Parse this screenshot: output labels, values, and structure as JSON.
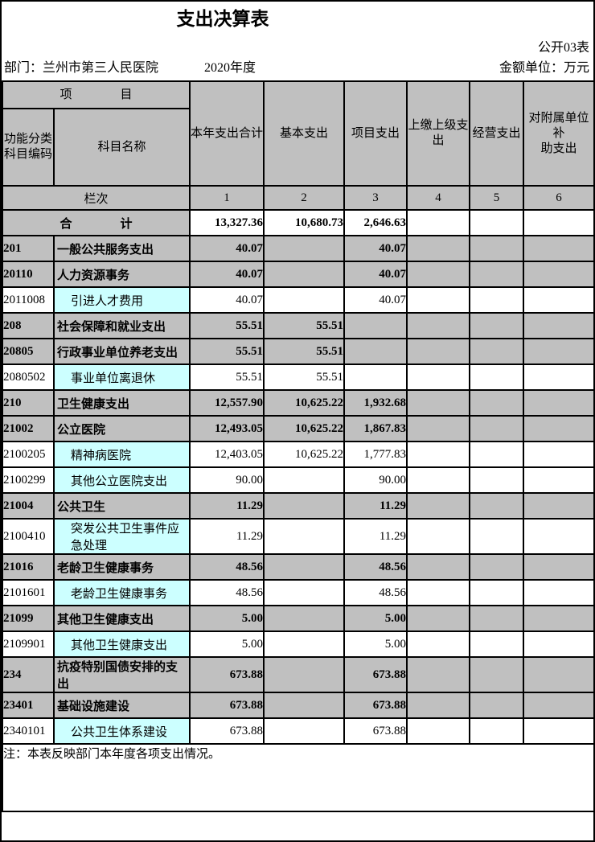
{
  "page": {
    "title": "支出决算表",
    "form_code": "公开03表",
    "department": "部门：兰州市第三人民医院",
    "year": "2020年度",
    "unit": "金额单位：万元",
    "note": "注：本表反映部门本年度各项支出情况。"
  },
  "colors": {
    "header_bg": "#c0c0c0",
    "detail_name_bg": "#ccffff",
    "border": "#000000"
  },
  "table": {
    "project_header": "项　　　　目",
    "code_header": "功能分类\n科目编码",
    "name_header": "科目名称",
    "columns": [
      "本年支出合计",
      "基本支出",
      "项目支出",
      "上缴上级支出",
      "经营支出",
      "对附属单位补\n助支出"
    ],
    "lanci_label": "栏次",
    "column_numbers": [
      "1",
      "2",
      "3",
      "4",
      "5",
      "6"
    ],
    "total": {
      "label": "合　　　　计",
      "values": [
        "13,327.36",
        "10,680.73",
        "2,646.63",
        "",
        "",
        ""
      ]
    },
    "rows": [
      {
        "code": "201",
        "name": "一般公共服务支出",
        "type": "group",
        "values": [
          "40.07",
          "",
          "40.07",
          "",
          "",
          ""
        ]
      },
      {
        "code": "20110",
        "name": "人力资源事务",
        "type": "group",
        "values": [
          "40.07",
          "",
          "40.07",
          "",
          "",
          ""
        ]
      },
      {
        "code": "2011008",
        "name": "引进人才费用",
        "type": "detail",
        "values": [
          "40.07",
          "",
          "40.07",
          "",
          "",
          ""
        ]
      },
      {
        "code": "208",
        "name": "社会保障和就业支出",
        "type": "group",
        "values": [
          "55.51",
          "55.51",
          "",
          "",
          "",
          ""
        ]
      },
      {
        "code": "20805",
        "name": "行政事业单位养老支出",
        "type": "group",
        "values": [
          "55.51",
          "55.51",
          "",
          "",
          "",
          ""
        ]
      },
      {
        "code": "2080502",
        "name": "事业单位离退休",
        "type": "detail",
        "values": [
          "55.51",
          "55.51",
          "",
          "",
          "",
          ""
        ]
      },
      {
        "code": "210",
        "name": "卫生健康支出",
        "type": "group",
        "values": [
          "12,557.90",
          "10,625.22",
          "1,932.68",
          "",
          "",
          ""
        ]
      },
      {
        "code": "21002",
        "name": "公立医院",
        "type": "group",
        "values": [
          "12,493.05",
          "10,625.22",
          "1,867.83",
          "",
          "",
          ""
        ]
      },
      {
        "code": "2100205",
        "name": "精神病医院",
        "type": "detail",
        "values": [
          "12,403.05",
          "10,625.22",
          "1,777.83",
          "",
          "",
          ""
        ]
      },
      {
        "code": "2100299",
        "name": "其他公立医院支出",
        "type": "detail",
        "values": [
          "90.00",
          "",
          "90.00",
          "",
          "",
          ""
        ]
      },
      {
        "code": "21004",
        "name": "公共卫生",
        "type": "group",
        "values": [
          "11.29",
          "",
          "11.29",
          "",
          "",
          ""
        ]
      },
      {
        "code": "2100410",
        "name": "突发公共卫生事件应急处理",
        "type": "detail",
        "values": [
          "11.29",
          "",
          "11.29",
          "",
          "",
          ""
        ]
      },
      {
        "code": "21016",
        "name": "老龄卫生健康事务",
        "type": "group",
        "values": [
          "48.56",
          "",
          "48.56",
          "",
          "",
          ""
        ]
      },
      {
        "code": "2101601",
        "name": "老龄卫生健康事务",
        "type": "detail",
        "values": [
          "48.56",
          "",
          "48.56",
          "",
          "",
          ""
        ]
      },
      {
        "code": "21099",
        "name": "其他卫生健康支出",
        "type": "group",
        "values": [
          "5.00",
          "",
          "5.00",
          "",
          "",
          ""
        ]
      },
      {
        "code": "2109901",
        "name": "其他卫生健康支出",
        "type": "detail",
        "values": [
          "5.00",
          "",
          "5.00",
          "",
          "",
          ""
        ]
      },
      {
        "code": "234",
        "name": "抗疫特别国债安排的支出",
        "type": "group",
        "values": [
          "673.88",
          "",
          "673.88",
          "",
          "",
          ""
        ]
      },
      {
        "code": "23401",
        "name": "基础设施建设",
        "type": "group",
        "values": [
          "673.88",
          "",
          "673.88",
          "",
          "",
          ""
        ]
      },
      {
        "code": "2340101",
        "name": "公共卫生体系建设",
        "type": "detail",
        "values": [
          "673.88",
          "",
          "673.88",
          "",
          "",
          ""
        ]
      }
    ]
  }
}
